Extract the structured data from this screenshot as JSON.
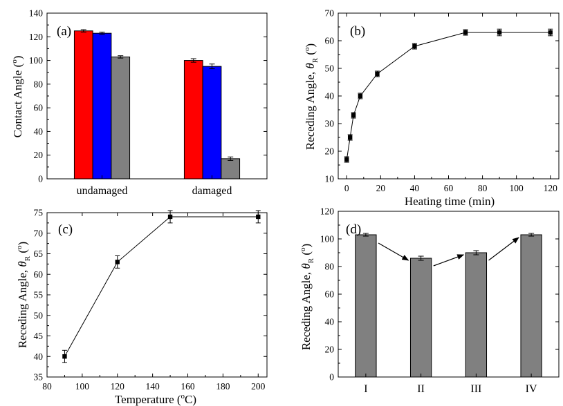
{
  "charts": [
    {
      "panel": "(a)",
      "type": "bar",
      "ylabel": "Contact Angle (°)",
      "ylabel_parts": {
        "main": "Contact Angle (",
        "sup": "o",
        "end": ")"
      },
      "xlabel": "",
      "ylim": [
        0,
        140
      ],
      "yticks": [
        0,
        20,
        40,
        60,
        80,
        100,
        120,
        140
      ],
      "categories": [
        "undamaged",
        "damaged"
      ],
      "series": [
        {
          "values": [
            125,
            100
          ],
          "errors": [
            1,
            1.5
          ],
          "color": "#ff0000"
        },
        {
          "values": [
            123,
            95
          ],
          "errors": [
            1,
            2
          ],
          "color": "#0000ff"
        },
        {
          "values": [
            103,
            17
          ],
          "errors": [
            1,
            1.5
          ],
          "color": "#808080"
        }
      ]
    },
    {
      "panel": "(b)",
      "type": "line",
      "xlabel": "Heating time (min)",
      "ylabel": "Receding Angle, θR (°)",
      "ylabel_parts": {
        "main": "Receding Angle, ",
        "theta": "θ",
        "sub": "R",
        "mid": " (",
        "sup": "o",
        "end": ")"
      },
      "xlim": [
        -5,
        125
      ],
      "ylim": [
        10,
        70
      ],
      "xticks": [
        0,
        20,
        40,
        60,
        80,
        100,
        120
      ],
      "yticks": [
        10,
        20,
        30,
        40,
        50,
        60,
        70
      ],
      "x": [
        0,
        2,
        4,
        8,
        18,
        40,
        70,
        90,
        120
      ],
      "y": [
        17,
        25,
        33,
        40,
        48,
        58,
        63,
        63,
        63
      ],
      "errors": [
        1,
        1,
        1,
        1,
        1,
        1,
        1,
        1.2,
        1.2
      ]
    },
    {
      "panel": "(c)",
      "type": "line",
      "xlabel": "Temperature (°C)",
      "xlabel_parts": {
        "main": "Temperature (",
        "sup": "o",
        "end": "C)"
      },
      "ylabel": "Receding Angle, θR (°)",
      "ylabel_parts": {
        "main": "Receding Angle, ",
        "theta": "θ",
        "sub": "R",
        "mid": " (",
        "sup": "o",
        "end": ")"
      },
      "xlim": [
        80,
        205
      ],
      "ylim": [
        35,
        75
      ],
      "xticks": [
        80,
        100,
        120,
        140,
        160,
        180,
        200
      ],
      "yticks": [
        35,
        40,
        45,
        50,
        55,
        60,
        65,
        70,
        75
      ],
      "x": [
        90,
        120,
        150,
        200
      ],
      "y": [
        40,
        63,
        74,
        74
      ],
      "errors": [
        1.5,
        1.5,
        1.5,
        1.5
      ]
    },
    {
      "panel": "(d)",
      "type": "bar",
      "xlabel": "",
      "ylabel": "Receding Angle, θR (°)",
      "ylabel_parts": {
        "main": "Receding Angle, ",
        "theta": "θ",
        "sub": "R",
        "mid": " (",
        "sup": "o",
        "end": ")"
      },
      "ylim": [
        0,
        120
      ],
      "yticks": [
        0,
        20,
        40,
        60,
        80,
        100,
        120
      ],
      "categories": [
        "I",
        "II",
        "III",
        "IV"
      ],
      "values": [
        103,
        86,
        90,
        103
      ],
      "errors": [
        1,
        1.5,
        1.5,
        1
      ],
      "color": "#808080",
      "arrows": true
    }
  ]
}
